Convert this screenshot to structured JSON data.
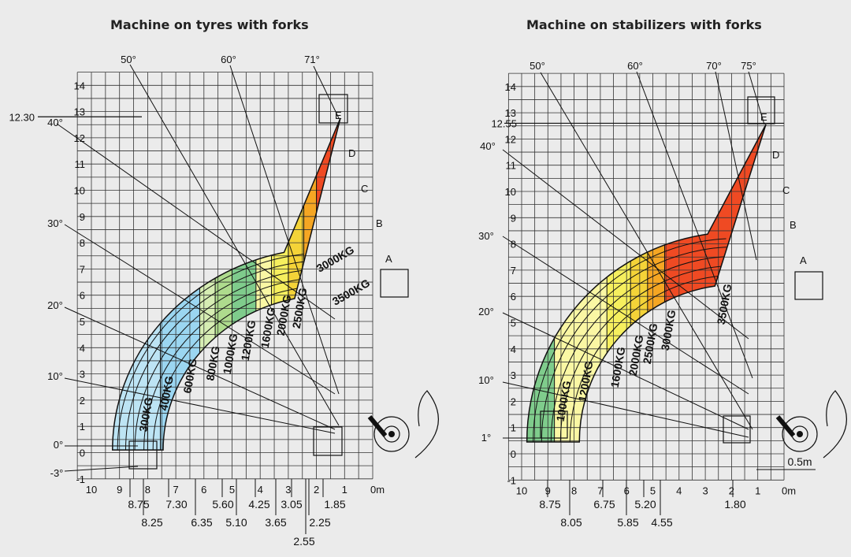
{
  "colors": {
    "background": "#ebebeb",
    "grid": "#333333",
    "zone_fills": [
      "#bde4f4",
      "#9bd6f1",
      "#d6edb3",
      "#aedb8d",
      "#7fcc8c",
      "#faf7a4",
      "#f6ef5e",
      "#f4d338",
      "#f5a623",
      "#ef4a23"
    ]
  },
  "chart_data": [
    {
      "type": "load-chart",
      "title": "Machine on tyres with forks",
      "x_ticks": [
        "10",
        "9",
        "8",
        "7",
        "6",
        "5",
        "4",
        "3",
        "2",
        "1",
        "0m"
      ],
      "y_ticks": [
        "-1",
        "0",
        "1",
        "2",
        "3",
        "4",
        "5",
        "6",
        "7",
        "8",
        "9",
        "10",
        "11",
        "12",
        "13",
        "14"
      ],
      "xlim": [
        0,
        10.5
      ],
      "ylim": [
        -1,
        14.5
      ],
      "angle_labels": [
        "50°",
        "60°",
        "71°",
        "40°",
        "30°",
        "20°",
        "10°",
        "0°",
        "-3°"
      ],
      "height_marker": "12.30",
      "boom_labels": [
        "A",
        "B",
        "C",
        "D",
        "E"
      ],
      "capacity_zones": [
        {
          "label": "300KG",
          "reach_limit": 8.75
        },
        {
          "label": "400KG",
          "reach_limit": 8.25
        },
        {
          "label": "600KG",
          "reach_limit": 7.3
        },
        {
          "label": "800KG",
          "reach_limit": 6.35
        },
        {
          "label": "1000KG",
          "reach_limit": 5.6
        },
        {
          "label": "1200KG",
          "reach_limit": 5.1
        },
        {
          "label": "1600KG",
          "reach_limit": 4.25
        },
        {
          "label": "2000KG",
          "reach_limit": 3.65
        },
        {
          "label": "2500KG",
          "reach_limit": 3.05
        },
        {
          "label": "3000KG",
          "reach_limit": 2.55
        },
        {
          "label": "3500KG",
          "reach_limit": 2.25
        }
      ],
      "reach_labels": [
        "8.75",
        "8.25",
        "7.30",
        "6.35",
        "5.60",
        "5.10",
        "4.25",
        "3.65",
        "3.05",
        "2.55",
        "2.25",
        "1.85"
      ]
    },
    {
      "type": "load-chart",
      "title": "Machine on stabilizers with forks",
      "x_ticks": [
        "10",
        "9",
        "8",
        "7",
        "6",
        "5",
        "4",
        "3",
        "2",
        "1",
        "0m"
      ],
      "y_ticks": [
        "-1",
        "0",
        "1",
        "2",
        "3",
        "4",
        "5",
        "6",
        "7",
        "8",
        "9",
        "10",
        "11",
        "12",
        "13",
        "14"
      ],
      "xlim": [
        0,
        10.5
      ],
      "ylim": [
        -1,
        14.5
      ],
      "angle_labels": [
        "50°",
        "60°",
        "70°",
        "75°",
        "40°",
        "30°",
        "20°",
        "10°",
        "1°"
      ],
      "height_marker": "12.55",
      "boom_labels": [
        "A",
        "B",
        "C",
        "D",
        "E"
      ],
      "scale_note": "0.5m",
      "capacity_zones": [
        {
          "label": "1000KG",
          "reach_limit": 8.75
        },
        {
          "label": "1200KG",
          "reach_limit": 8.05
        },
        {
          "label": "1600KG",
          "reach_limit": 6.75
        },
        {
          "label": "2000KG",
          "reach_limit": 5.85
        },
        {
          "label": "2500KG",
          "reach_limit": 5.2
        },
        {
          "label": "3000KG",
          "reach_limit": 4.55
        },
        {
          "label": "3500KG",
          "reach_limit": 1.8
        }
      ],
      "reach_labels": [
        "8.75",
        "8.05",
        "6.75",
        "5.85",
        "5.20",
        "4.55",
        "1.80"
      ]
    }
  ]
}
